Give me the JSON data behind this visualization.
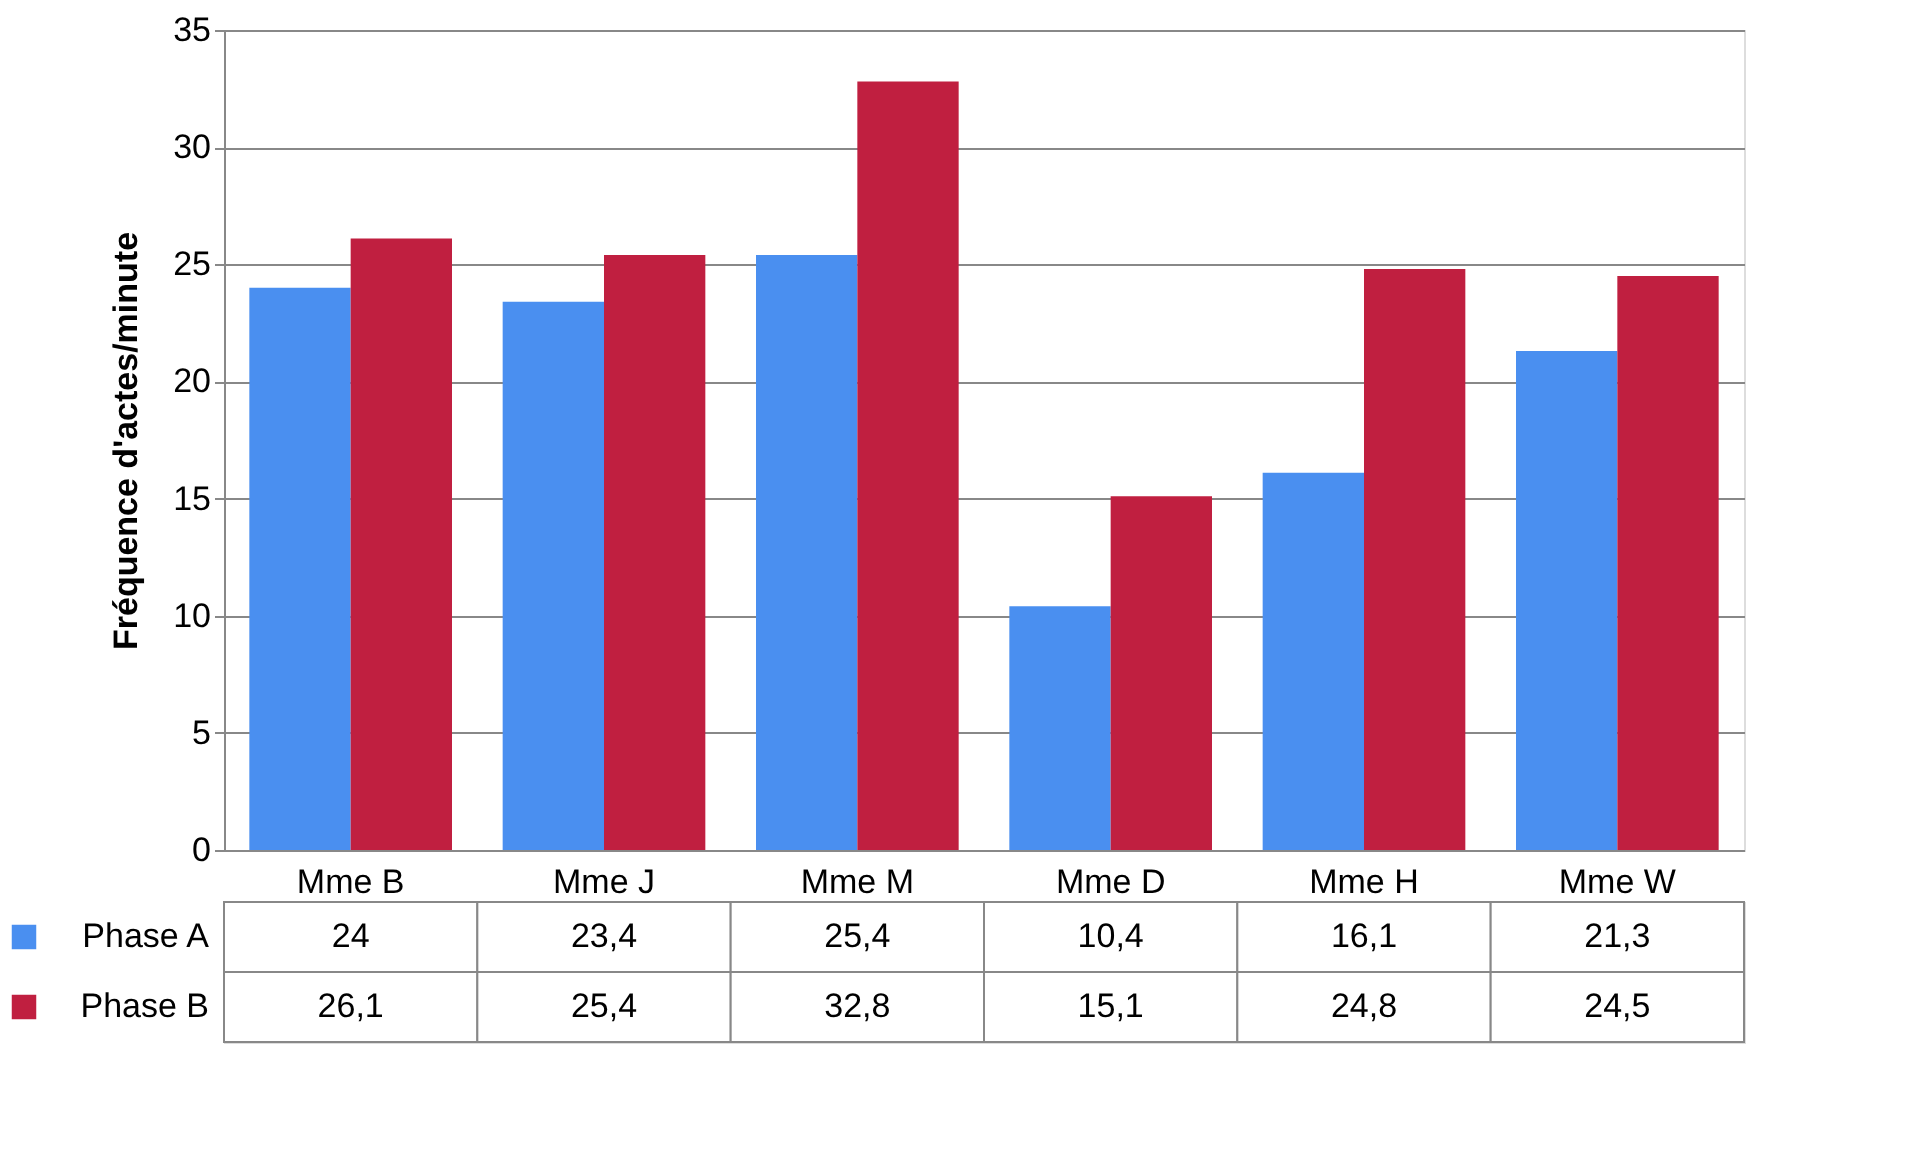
{
  "chart_data": {
    "type": "bar",
    "ylabel": "Fréquence d'actes/minute",
    "categories": [
      "Mme B",
      "Mme J",
      "Mme M",
      "Mme D",
      "Mme H",
      "Mme W"
    ],
    "series": [
      {
        "name": "Phase A",
        "color": "#4a8ff0",
        "values": [
          24,
          23.4,
          25.4,
          10.4,
          16.1,
          21.3
        ],
        "value_labels": [
          "24",
          "23,4",
          "25,4",
          "10,4",
          "16,1",
          "21,3"
        ]
      },
      {
        "name": "Phase B",
        "color": "#c01f40",
        "values": [
          26.1,
          25.4,
          32.8,
          15.1,
          24.8,
          24.5
        ],
        "value_labels": [
          "26,1",
          "25,4",
          "32,8",
          "15,1",
          "24,8",
          "24,5"
        ]
      }
    ],
    "ylim": [
      0,
      35
    ],
    "yticks": [
      0,
      5,
      10,
      15,
      20,
      25,
      30,
      35
    ],
    "grid": "y",
    "legend": "bottom"
  }
}
